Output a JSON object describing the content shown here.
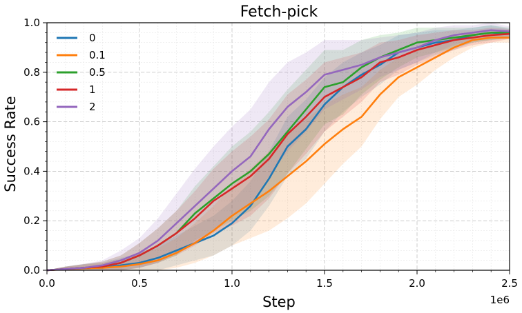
{
  "chart_data": {
    "type": "line",
    "title": "Fetch-pick",
    "xlabel": "Step",
    "ylabel": "Success Rate",
    "x_offset_label": "1e6",
    "xlim": [
      0,
      2.5
    ],
    "ylim": [
      0,
      1.0
    ],
    "xticks": [
      "0.0",
      "0.5",
      "1.0",
      "1.5",
      "2.0",
      "2.5"
    ],
    "yticks": [
      "0.0",
      "0.2",
      "0.4",
      "0.6",
      "0.8",
      "1.0"
    ],
    "grid": true,
    "legend_position": "top-left",
    "x": [
      0.0,
      0.1,
      0.2,
      0.3,
      0.4,
      0.5,
      0.6,
      0.7,
      0.8,
      0.9,
      1.0,
      1.1,
      1.2,
      1.3,
      1.4,
      1.5,
      1.6,
      1.7,
      1.8,
      1.9,
      2.0,
      2.1,
      2.2,
      2.3,
      2.4,
      2.5
    ],
    "series": [
      {
        "name": "0",
        "color": "#1f77b4",
        "values": [
          0.0,
          0.005,
          0.01,
          0.01,
          0.02,
          0.03,
          0.05,
          0.08,
          0.11,
          0.14,
          0.19,
          0.26,
          0.37,
          0.5,
          0.57,
          0.67,
          0.74,
          0.79,
          0.83,
          0.88,
          0.9,
          0.92,
          0.93,
          0.95,
          0.96,
          0.955
        ],
        "band": [
          0.0,
          0.01,
          0.015,
          0.02,
          0.03,
          0.04,
          0.05,
          0.06,
          0.07,
          0.08,
          0.09,
          0.1,
          0.11,
          0.12,
          0.12,
          0.11,
          0.1,
          0.09,
          0.08,
          0.07,
          0.06,
          0.05,
          0.04,
          0.03,
          0.03,
          0.02
        ]
      },
      {
        "name": "0.1",
        "color": "#ff7f0e",
        "values": [
          0.0,
          0.004,
          0.008,
          0.01,
          0.015,
          0.025,
          0.04,
          0.07,
          0.11,
          0.16,
          0.22,
          0.27,
          0.32,
          0.38,
          0.44,
          0.51,
          0.57,
          0.62,
          0.71,
          0.78,
          0.82,
          0.86,
          0.9,
          0.93,
          0.94,
          0.94
        ],
        "band": [
          0.0,
          0.01,
          0.015,
          0.02,
          0.03,
          0.04,
          0.05,
          0.06,
          0.08,
          0.1,
          0.12,
          0.14,
          0.16,
          0.17,
          0.17,
          0.16,
          0.14,
          0.12,
          0.1,
          0.08,
          0.07,
          0.05,
          0.04,
          0.03,
          0.02,
          0.02
        ]
      },
      {
        "name": "0.5",
        "color": "#2ca02c",
        "values": [
          0.0,
          0.005,
          0.01,
          0.015,
          0.03,
          0.06,
          0.1,
          0.15,
          0.23,
          0.29,
          0.35,
          0.4,
          0.47,
          0.56,
          0.65,
          0.74,
          0.76,
          0.82,
          0.86,
          0.89,
          0.92,
          0.93,
          0.94,
          0.95,
          0.96,
          0.96
        ],
        "band": [
          0.0,
          0.01,
          0.015,
          0.02,
          0.03,
          0.05,
          0.07,
          0.09,
          0.11,
          0.13,
          0.15,
          0.16,
          0.17,
          0.17,
          0.16,
          0.15,
          0.13,
          0.11,
          0.09,
          0.07,
          0.06,
          0.05,
          0.04,
          0.03,
          0.03,
          0.02
        ]
      },
      {
        "name": "1",
        "color": "#d62728",
        "values": [
          0.0,
          0.005,
          0.01,
          0.015,
          0.03,
          0.06,
          0.1,
          0.15,
          0.21,
          0.28,
          0.33,
          0.38,
          0.45,
          0.55,
          0.62,
          0.7,
          0.74,
          0.78,
          0.84,
          0.86,
          0.89,
          0.91,
          0.93,
          0.94,
          0.95,
          0.955
        ],
        "band": [
          0.0,
          0.01,
          0.015,
          0.02,
          0.03,
          0.05,
          0.07,
          0.09,
          0.11,
          0.13,
          0.15,
          0.16,
          0.16,
          0.16,
          0.15,
          0.14,
          0.12,
          0.1,
          0.08,
          0.07,
          0.06,
          0.05,
          0.04,
          0.03,
          0.03,
          0.02
        ]
      },
      {
        "name": "2",
        "color": "#9467bd",
        "values": [
          0.0,
          0.005,
          0.01,
          0.02,
          0.04,
          0.07,
          0.12,
          0.19,
          0.26,
          0.33,
          0.4,
          0.46,
          0.57,
          0.66,
          0.72,
          0.79,
          0.81,
          0.83,
          0.86,
          0.88,
          0.9,
          0.93,
          0.95,
          0.96,
          0.97,
          0.965
        ],
        "band": [
          0.0,
          0.01,
          0.015,
          0.02,
          0.04,
          0.06,
          0.09,
          0.12,
          0.15,
          0.17,
          0.18,
          0.19,
          0.19,
          0.18,
          0.16,
          0.14,
          0.12,
          0.1,
          0.08,
          0.07,
          0.06,
          0.05,
          0.04,
          0.03,
          0.03,
          0.02
        ]
      }
    ]
  }
}
